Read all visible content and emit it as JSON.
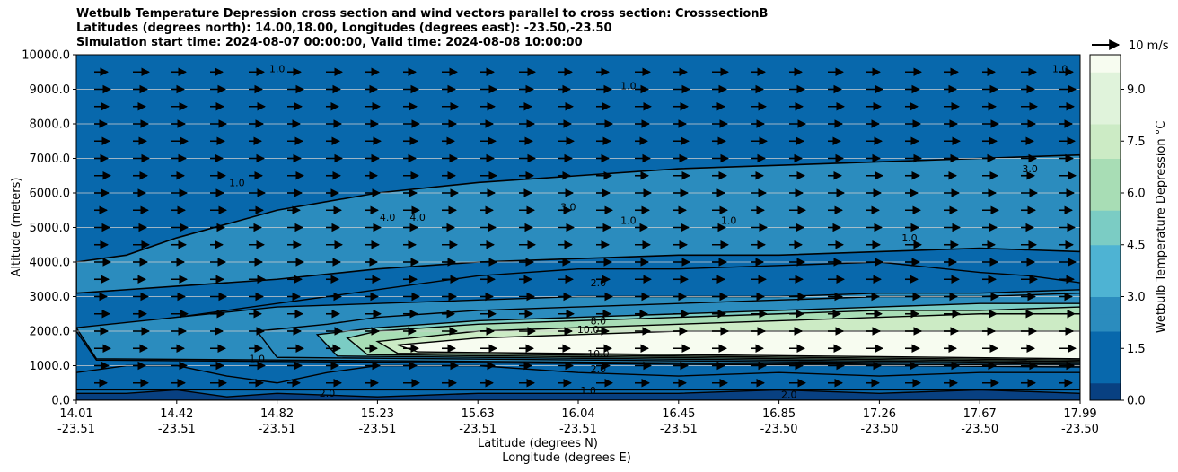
{
  "chart_data": {
    "type": "heatmap",
    "title_lines": [
      "Wetbulb Temperature Depression cross section and wind vectors parallel to cross section: CrosssectionB",
      "Latitudes (degrees north): 14.00,18.00, Longitudes (degrees east): -23.50,-23.50",
      "Simulation start time: 2024-08-07 00:00:00, Valid time: 2024-08-08 10:00:00"
    ],
    "ylabel": "Altitude (meters)",
    "xlabel_lines": [
      "Latitude (degrees N)",
      "Longitude (degrees E)"
    ],
    "ylim": [
      0,
      10000
    ],
    "y_ticks": [
      "0.0",
      "1000.0",
      "2000.0",
      "3000.0",
      "4000.0",
      "5000.0",
      "6000.0",
      "7000.0",
      "8000.0",
      "9000.0",
      "10000.0"
    ],
    "x_ticks": [
      {
        "lat": "14.01",
        "lon": "-23.51"
      },
      {
        "lat": "14.42",
        "lon": "-23.51"
      },
      {
        "lat": "14.82",
        "lon": "-23.51"
      },
      {
        "lat": "15.23",
        "lon": "-23.51"
      },
      {
        "lat": "15.63",
        "lon": "-23.51"
      },
      {
        "lat": "16.04",
        "lon": "-23.51"
      },
      {
        "lat": "16.45",
        "lon": "-23.51"
      },
      {
        "lat": "16.85",
        "lon": "-23.50"
      },
      {
        "lat": "17.26",
        "lon": "-23.50"
      },
      {
        "lat": "17.67",
        "lon": "-23.50"
      },
      {
        "lat": "17.99",
        "lon": "-23.50"
      }
    ],
    "grid": "horizontal",
    "colorbar": {
      "label": "Wetbulb Temperature Depression °C",
      "range": [
        0,
        10
      ],
      "ticks": [
        "0.0",
        "1.5",
        "3.0",
        "4.5",
        "6.0",
        "7.5",
        "9.0"
      ],
      "colors": [
        "#084081",
        "#0868ac",
        "#2b8cbe",
        "#4eb3d3",
        "#7bccc4",
        "#a8ddb5",
        "#ccebc5",
        "#e0f3db",
        "#f7fcf0"
      ]
    },
    "wind_key": {
      "label": "10 m/s"
    },
    "bands": [
      {
        "level": 0.5,
        "boundary_km": [
          [
            0,
            0.2
          ],
          [
            0.5,
            0.2
          ],
          [
            1,
            0.3
          ],
          [
            1.5,
            0.1
          ],
          [
            2,
            0.2
          ],
          [
            3,
            0.1
          ],
          [
            4,
            0.2
          ],
          [
            5,
            0.2
          ],
          [
            6,
            0.2
          ],
          [
            7,
            0.3
          ],
          [
            8,
            0.2
          ],
          [
            9,
            0.3
          ],
          [
            10,
            0.2
          ]
        ]
      },
      {
        "level": 1.0,
        "boundary_km": [
          [
            0,
            0.8
          ],
          [
            0.5,
            1.0
          ],
          [
            1,
            1.0
          ],
          [
            1.5,
            0.7
          ],
          [
            2,
            0.5
          ],
          [
            2.5,
            0.8
          ],
          [
            3,
            1.0
          ],
          [
            4,
            1.0
          ],
          [
            5,
            0.8
          ],
          [
            6,
            0.7
          ],
          [
            7,
            0.8
          ],
          [
            8,
            0.7
          ],
          [
            9,
            0.8
          ],
          [
            10,
            0.8
          ]
        ]
      },
      {
        "level": 1.5,
        "boundary_km": [
          [
            0,
            2.0
          ],
          [
            0.5,
            2.2
          ],
          [
            1,
            2.4
          ],
          [
            1.5,
            2.6
          ],
          [
            2,
            2.8
          ],
          [
            2.5,
            3.0
          ],
          [
            3,
            3.2
          ],
          [
            3.5,
            3.4
          ],
          [
            4,
            3.6
          ],
          [
            4.5,
            3.7
          ],
          [
            5,
            3.8
          ],
          [
            6,
            3.8
          ],
          [
            7,
            3.9
          ],
          [
            8,
            4.0
          ],
          [
            9,
            3.7
          ],
          [
            9.5,
            3.6
          ],
          [
            10,
            3.4
          ]
        ]
      },
      {
        "level": 2.0,
        "boundary_km": [
          [
            0,
            2.1
          ],
          [
            1,
            2.4
          ],
          [
            2,
            2.7
          ],
          [
            3,
            2.8
          ],
          [
            4,
            2.9
          ],
          [
            5,
            3.0
          ],
          [
            6,
            3.0
          ],
          [
            7,
            3.0
          ],
          [
            8,
            3.1
          ],
          [
            9,
            3.1
          ],
          [
            10,
            3.2
          ]
        ]
      },
      {
        "level": 3.0,
        "boundary_km": [
          [
            1.8,
            2.0
          ],
          [
            2.5,
            2.2
          ],
          [
            3,
            2.4
          ],
          [
            4,
            2.6
          ],
          [
            5,
            2.7
          ],
          [
            6,
            2.8
          ],
          [
            7,
            2.9
          ],
          [
            8,
            3.0
          ],
          [
            9,
            3.0
          ],
          [
            10,
            3.1
          ]
        ]
      },
      {
        "level": 4.5,
        "boundary_km": [
          [
            2.4,
            1.9
          ],
          [
            3,
            2.1
          ],
          [
            4,
            2.3
          ],
          [
            5,
            2.4
          ],
          [
            6,
            2.5
          ],
          [
            7,
            2.6
          ],
          [
            8,
            2.7
          ],
          [
            9,
            2.8
          ],
          [
            10,
            2.8
          ]
        ]
      },
      {
        "level": 6.0,
        "boundary_km": [
          [
            2.7,
            1.8
          ],
          [
            3,
            2.0
          ],
          [
            4,
            2.2
          ],
          [
            5,
            2.3
          ],
          [
            6,
            2.4
          ],
          [
            7,
            2.5
          ],
          [
            8,
            2.6
          ],
          [
            9,
            2.6
          ],
          [
            10,
            2.7
          ]
        ]
      },
      {
        "level": 8.0,
        "boundary_km": [
          [
            3.0,
            1.7
          ],
          [
            4,
            2.0
          ],
          [
            5,
            2.1
          ],
          [
            6,
            2.2
          ],
          [
            7,
            2.3
          ],
          [
            8,
            2.4
          ],
          [
            9,
            2.5
          ],
          [
            10,
            2.5
          ]
        ]
      },
      {
        "level": 10.0,
        "boundary_km": [
          [
            3.2,
            1.6
          ],
          [
            4,
            1.8
          ],
          [
            5,
            1.9
          ],
          [
            6,
            2.0
          ],
          [
            7,
            2.0
          ],
          [
            8,
            2.0
          ],
          [
            9,
            2.0
          ],
          [
            10,
            2.0
          ]
        ]
      }
    ],
    "upper_layer": {
      "level": 2.0,
      "outline_km": [
        [
          0,
          4.0
        ],
        [
          0.5,
          4.2
        ],
        [
          1,
          4.7
        ],
        [
          2,
          5.5
        ],
        [
          3,
          6.0
        ],
        [
          4,
          6.3
        ],
        [
          5,
          6.5
        ],
        [
          6,
          6.7
        ],
        [
          7,
          6.8
        ],
        [
          8,
          6.9
        ],
        [
          9,
          7.0
        ],
        [
          10,
          7.1
        ],
        [
          10,
          4.3
        ],
        [
          9,
          4.4
        ],
        [
          8,
          4.3
        ],
        [
          7,
          4.2
        ],
        [
          6,
          4.2
        ],
        [
          5,
          4.1
        ],
        [
          4,
          4.0
        ],
        [
          3,
          3.8
        ],
        [
          2,
          3.5
        ],
        [
          1,
          3.3
        ],
        [
          0,
          3.1
        ]
      ]
    },
    "contour_labels": [
      {
        "text": "1.0",
        "xkm": 1.8,
        "alt": 1100
      },
      {
        "text": "2.0",
        "xkm": 2.5,
        "alt": 100
      },
      {
        "text": "1.0",
        "xkm": 5.1,
        "alt": 180
      },
      {
        "text": "2.0",
        "xkm": 7.1,
        "alt": 70
      },
      {
        "text": "2.0",
        "xkm": 5.2,
        "alt": 800
      },
      {
        "text": "10.0",
        "xkm": 5.2,
        "alt": 1250
      },
      {
        "text": "8.0",
        "xkm": 5.2,
        "alt": 2200
      },
      {
        "text": "10.0",
        "xkm": 5.1,
        "alt": 1950
      },
      {
        "text": "2.0",
        "xkm": 5.2,
        "alt": 3300
      },
      {
        "text": "3.0",
        "xkm": 4.9,
        "alt": 5500
      },
      {
        "text": "4.0",
        "xkm": 3.1,
        "alt": 5200
      },
      {
        "text": "4.0",
        "xkm": 3.4,
        "alt": 5200
      },
      {
        "text": "3.0",
        "xkm": 9.5,
        "alt": 6600
      },
      {
        "text": "1.0",
        "xkm": 1.6,
        "alt": 6200
      },
      {
        "text": "1.0",
        "xkm": 2.0,
        "alt": 9500
      },
      {
        "text": "1.0",
        "xkm": 5.5,
        "alt": 5100
      },
      {
        "text": "1.0",
        "xkm": 6.5,
        "alt": 5100
      },
      {
        "text": "1.0",
        "xkm": 8.3,
        "alt": 4600
      },
      {
        "text": "1.0",
        "xkm": 5.5,
        "alt": 9000
      },
      {
        "text": "1.0",
        "xkm": 9.8,
        "alt": 9500
      }
    ]
  }
}
